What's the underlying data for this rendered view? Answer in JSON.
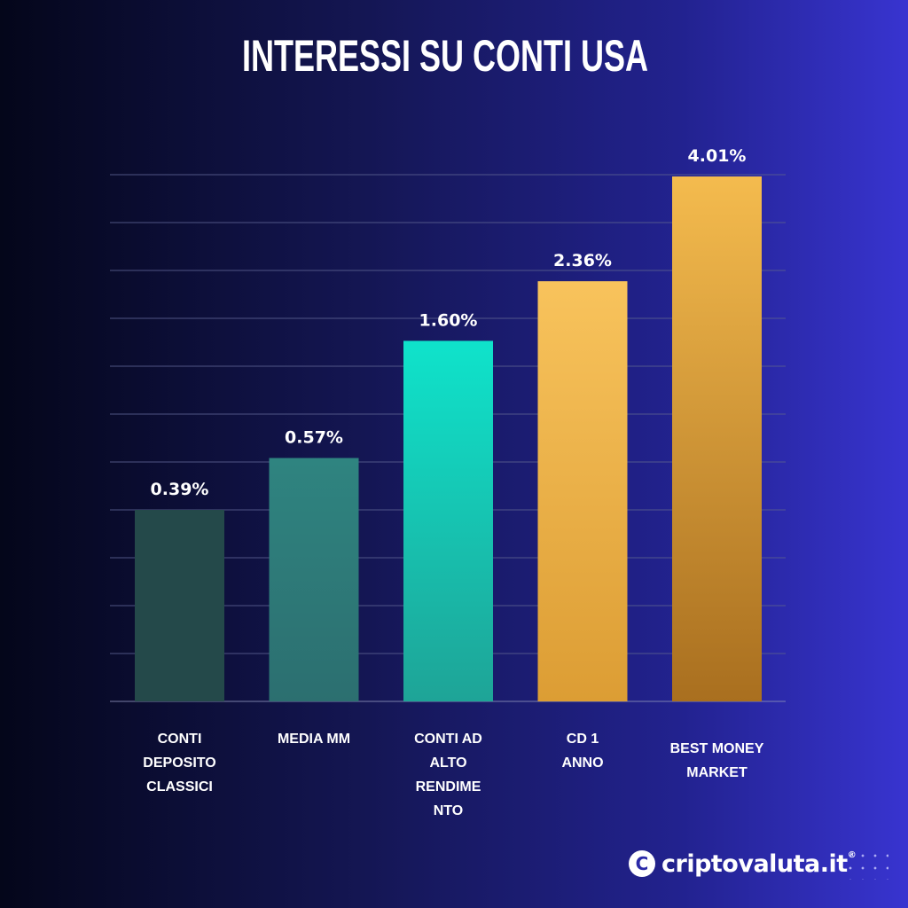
{
  "chart_data": {
    "type": "bar",
    "title": "INTERESSI SU CONTI USA",
    "categories": [
      "CONTI\nDEPOSITO\nCLASSICI",
      "MEDIA MM",
      "CONTI AD\nALTO\nRENDIME\nNTO",
      "CD 1\nANNO",
      "BEST MONEY\nMARKET"
    ],
    "values": [
      0.39,
      0.57,
      1.6,
      2.36,
      4.01
    ],
    "data_labels": [
      "0.39%",
      "0.57%",
      "1.60%",
      "2.36%",
      "4.01%"
    ],
    "unit": "%",
    "grid": true,
    "colors": [
      "#24494a",
      "#2f7d7b",
      "#13dcc6",
      "#f5bd55",
      "#eeb043"
    ]
  },
  "brand": {
    "name": "criptovaluta.it",
    "mark": "®"
  }
}
